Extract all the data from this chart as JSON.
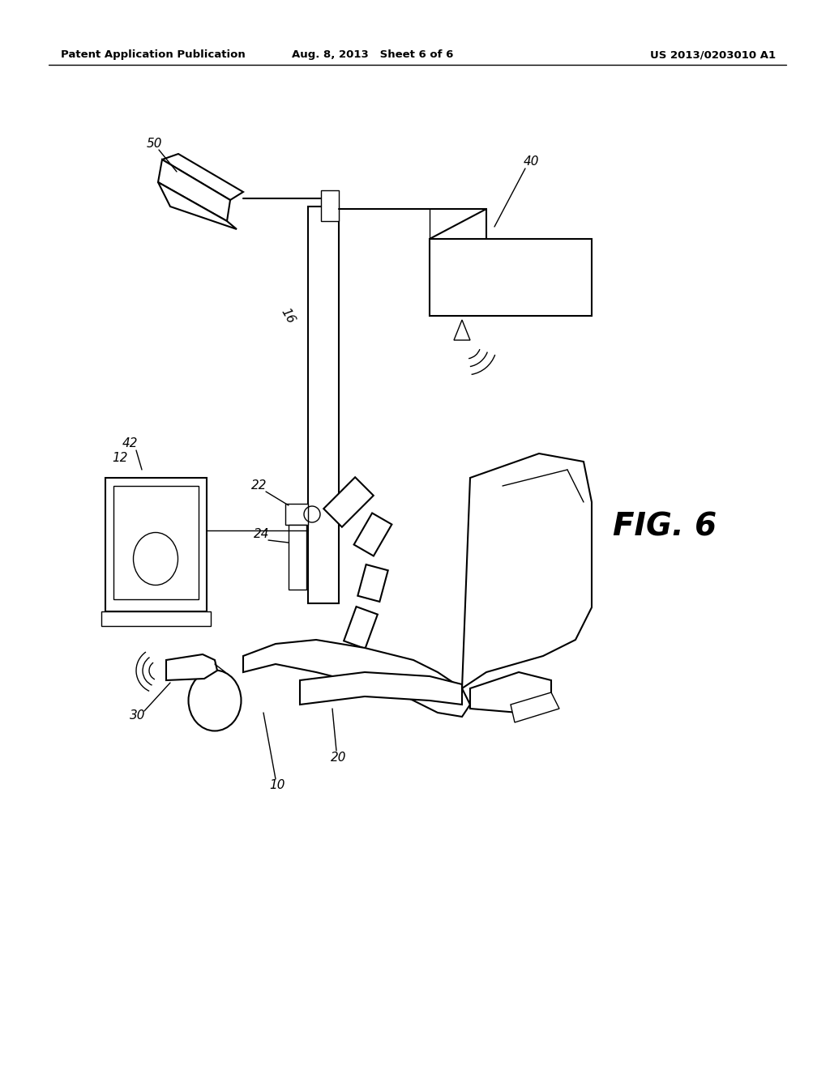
{
  "bg_color": "#ffffff",
  "header_left": "Patent Application Publication",
  "header_mid": "Aug. 8, 2013   Sheet 6 of 6",
  "header_right": "US 2013/0203010 A1",
  "fig_label": "FIG. 6"
}
